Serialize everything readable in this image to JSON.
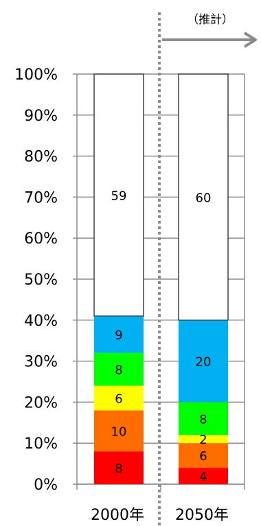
{
  "chart_data": {
    "type": "bar",
    "stacked": true,
    "percent_axis": true,
    "categories": [
      "2000年",
      "2050年"
    ],
    "series": [
      {
        "values": [
          8,
          4
        ],
        "color": "#ff0000"
      },
      {
        "values": [
          10,
          6
        ],
        "color": "#ff6d00"
      },
      {
        "values": [
          6,
          2
        ],
        "color": "#ffff00"
      },
      {
        "values": [
          8,
          8
        ],
        "color": "#00ff00"
      },
      {
        "values": [
          9,
          20
        ],
        "color": "#00b0f0"
      },
      {
        "values": [
          59,
          60
        ],
        "color": "#ffffff"
      }
    ],
    "ylim": [
      0,
      100
    ],
    "yticks": [
      "0%",
      "10%",
      "20%",
      "30%",
      "40%",
      "50%",
      "60%",
      "70%",
      "80%",
      "90%",
      "100%"
    ],
    "grid": true,
    "annotation": {
      "text": "（推計）",
      "arrow": "right",
      "divider": "dotted-vertical"
    }
  }
}
